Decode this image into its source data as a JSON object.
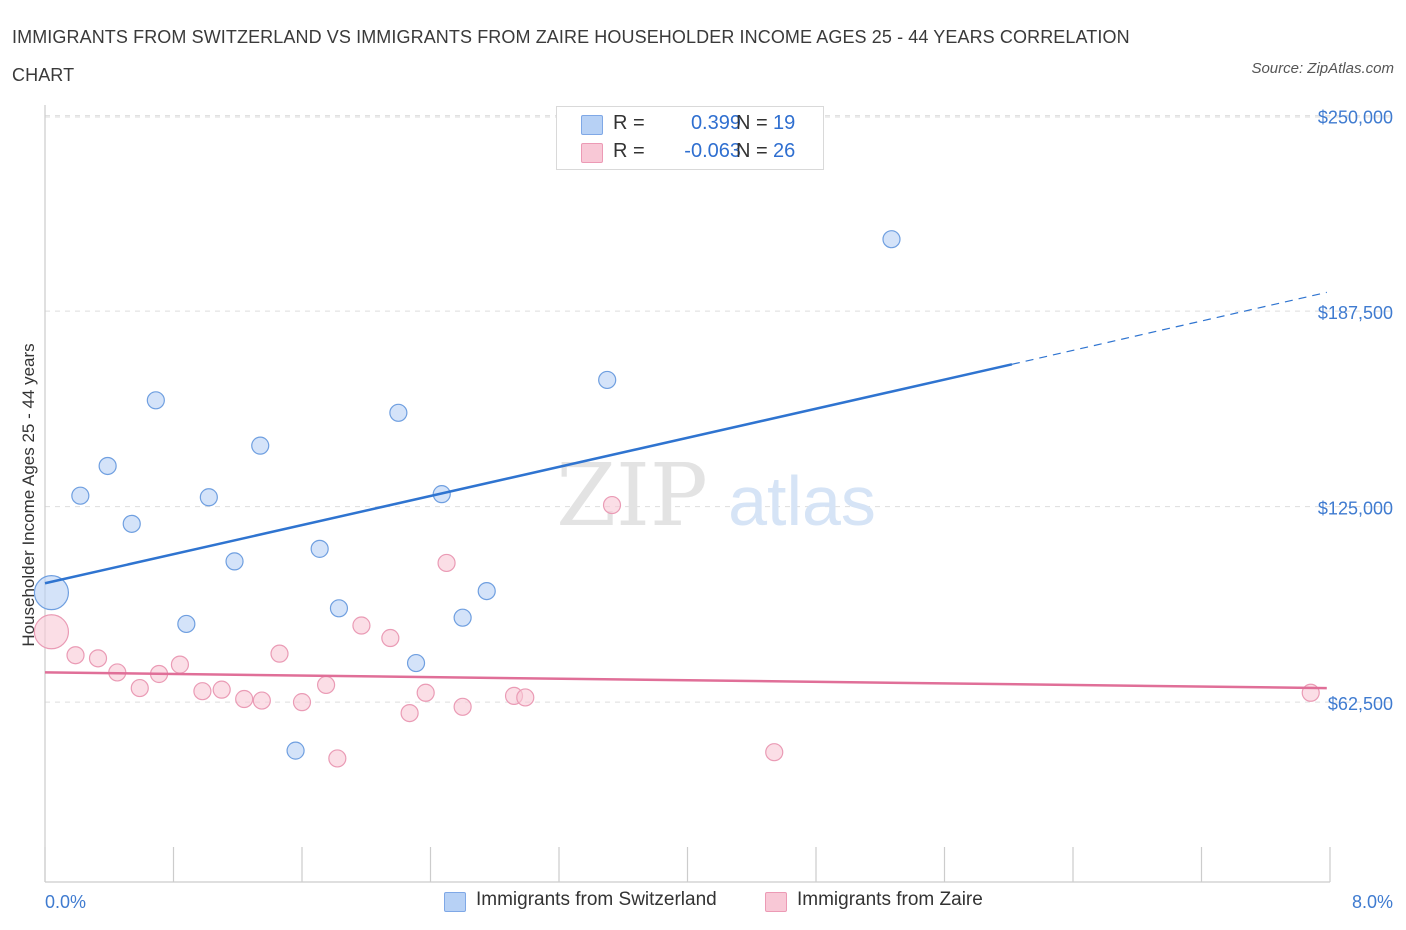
{
  "title": "IMMIGRANTS FROM SWITZERLAND VS IMMIGRANTS FROM ZAIRE HOUSEHOLDER INCOME AGES 25 - 44 YEARS CORRELATION CHART",
  "source": "Source: ZipAtlas.com",
  "watermark": {
    "zip": "ZIP",
    "atlas": "atlas"
  },
  "legend": {
    "r_label": "R =",
    "n_label": "N =",
    "rows": [
      {
        "r": "0.399",
        "n": "19",
        "color": "#b7d1f5"
      },
      {
        "r": "-0.063",
        "n": "26",
        "color": "#f8c8d6"
      }
    ]
  },
  "bottom_legend": [
    "Immigrants from Switzerland",
    "Immigrants from Zaire"
  ],
  "colors": {
    "blue_fill": "#b7d1f5",
    "blue_stroke": "#6f9fe0",
    "blue_line": "#2f74d0",
    "pink_fill": "#f8c8d6",
    "pink_stroke": "#ea9bb5",
    "pink_line": "#e06f98",
    "grid": "#dddddd",
    "axis_text": "#3f7bd0"
  },
  "chart_data": {
    "type": "scatter",
    "title": "IMMIGRANTS FROM SWITZERLAND VS IMMIGRANTS FROM ZAIRE HOUSEHOLDER INCOME AGES 25 - 44 YEARS CORRELATION CHART",
    "xlabel": "",
    "ylabel": "Householder Income Ages 25 - 44 years",
    "xlim": [
      0,
      8
    ],
    "ylim": [
      5000,
      255000
    ],
    "x_tick_labels": [
      "0.0%",
      "8.0%"
    ],
    "y_ticks": [
      62500,
      125000,
      187500,
      250000
    ],
    "y_tick_labels": [
      "$62,500",
      "$125,000",
      "$187,500",
      "$250,000"
    ],
    "grid": "horizontal dashed",
    "series": [
      {
        "name": "Immigrants from Switzerland",
        "points": [
          {
            "x": 0.04,
            "y": 97500,
            "big": true
          },
          {
            "x": 0.22,
            "y": 128500
          },
          {
            "x": 0.39,
            "y": 138000
          },
          {
            "x": 0.54,
            "y": 119500
          },
          {
            "x": 0.69,
            "y": 159000
          },
          {
            "x": 0.88,
            "y": 87500
          },
          {
            "x": 1.02,
            "y": 128000
          },
          {
            "x": 1.18,
            "y": 107500
          },
          {
            "x": 1.34,
            "y": 144500
          },
          {
            "x": 1.56,
            "y": 47000
          },
          {
            "x": 1.71,
            "y": 111500
          },
          {
            "x": 1.83,
            "y": 92500
          },
          {
            "x": 2.2,
            "y": 155000
          },
          {
            "x": 2.31,
            "y": 75000
          },
          {
            "x": 2.47,
            "y": 129000
          },
          {
            "x": 2.6,
            "y": 89500
          },
          {
            "x": 2.75,
            "y": 98000
          },
          {
            "x": 3.5,
            "y": 165500
          },
          {
            "x": 5.27,
            "y": 210500
          }
        ],
        "trend": {
          "x0": 0.0,
          "y0": 100500,
          "x1": 6.02,
          "y1": 170500,
          "dash_to_x": 7.98,
          "dash_to_y": 193500
        }
      },
      {
        "name": "Immigrants from Zaire",
        "points": [
          {
            "x": 0.04,
            "y": 85000,
            "big": true
          },
          {
            "x": 0.19,
            "y": 77500
          },
          {
            "x": 0.33,
            "y": 76500
          },
          {
            "x": 0.45,
            "y": 72000
          },
          {
            "x": 0.59,
            "y": 67000
          },
          {
            "x": 0.71,
            "y": 71500
          },
          {
            "x": 0.84,
            "y": 74500
          },
          {
            "x": 0.98,
            "y": 66000
          },
          {
            "x": 1.1,
            "y": 66500
          },
          {
            "x": 1.24,
            "y": 63500
          },
          {
            "x": 1.35,
            "y": 63000
          },
          {
            "x": 1.46,
            "y": 78000
          },
          {
            "x": 1.6,
            "y": 62500
          },
          {
            "x": 1.75,
            "y": 68000
          },
          {
            "x": 1.82,
            "y": 44500
          },
          {
            "x": 1.97,
            "y": 87000
          },
          {
            "x": 2.15,
            "y": 83000
          },
          {
            "x": 2.27,
            "y": 59000
          },
          {
            "x": 2.37,
            "y": 65500
          },
          {
            "x": 2.5,
            "y": 107000
          },
          {
            "x": 2.6,
            "y": 61000
          },
          {
            "x": 2.92,
            "y": 64500
          },
          {
            "x": 2.99,
            "y": 64000
          },
          {
            "x": 3.53,
            "y": 125500
          },
          {
            "x": 4.54,
            "y": 46500
          },
          {
            "x": 7.88,
            "y": 65500
          }
        ],
        "trend": {
          "x0": 0.0,
          "y0": 72000,
          "x1": 7.98,
          "y1": 67000
        }
      }
    ]
  }
}
